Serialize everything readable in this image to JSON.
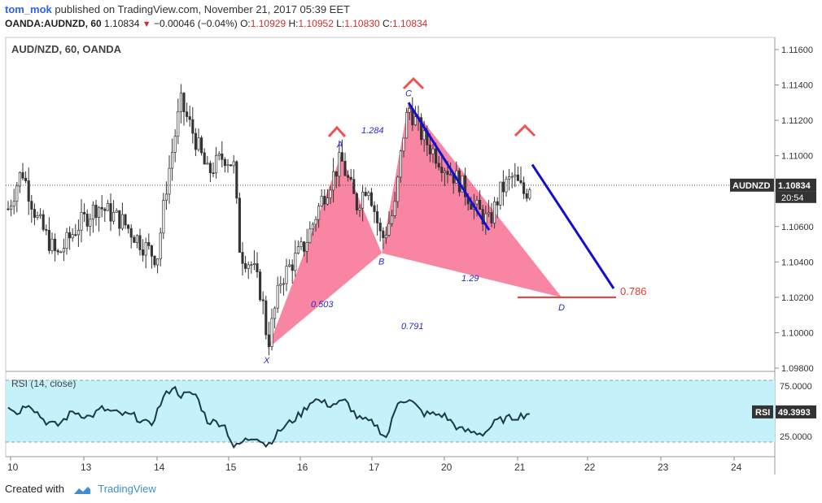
{
  "header": {
    "user": "tom_mok",
    "published_text": "published on TradingView.com, November 21, 2017 05:39 EET",
    "symbol": "OANDA:AUDNZD, 60",
    "last": "1.10834",
    "change": "−0.00046 (−0.04%)",
    "o_label": "O:",
    "o_value": "1.10929",
    "h_label": "H:",
    "h_value": "1.10952",
    "l_label": "L:",
    "l_value": "1.10830",
    "c_label": "C:",
    "c_value": "1.10834"
  },
  "chart_data": {
    "type": "candlestick",
    "title": "AUD/NZD, 60, OANDA",
    "price_ticks": [
      "1.11600",
      "1.11400",
      "1.11200",
      "1.11000",
      "1.10800",
      "1.10600",
      "1.10400",
      "1.10200",
      "1.10000",
      "1.09800"
    ],
    "price_tick_values": [
      1.116,
      1.114,
      1.112,
      1.11,
      1.108,
      1.106,
      1.104,
      1.102,
      1.1,
      1.098
    ],
    "ylim": [
      1.0978,
      1.1172
    ],
    "date_ticks": [
      "10",
      "13",
      "14",
      "15",
      "16",
      "17",
      "20",
      "21",
      "22",
      "23",
      "24"
    ],
    "last_price_badge": {
      "symbol": "AUDNZD",
      "price": "1.10834",
      "countdown": "20:54",
      "value": 1.10834
    },
    "harmonic_pattern": {
      "points": [
        {
          "label": "X",
          "price": 1.0991
        },
        {
          "label": "A",
          "price": 1.11
        },
        {
          "label": "B",
          "price": 1.1045
        },
        {
          "label": "C",
          "price": 1.113
        },
        {
          "label": "D",
          "price": 1.102
        }
      ],
      "ratios": [
        "0.503",
        "1.284",
        "1.29",
        "0.791"
      ],
      "target_level": {
        "label": "0.786",
        "price": 1.102
      }
    },
    "rsi": {
      "label": "RSI (14, close)",
      "badge_name": "RSI",
      "value": "49.3993",
      "levels": [
        "75.0000",
        "25.0000"
      ],
      "level_values": [
        75,
        25
      ],
      "ylim": [
        0,
        100
      ]
    },
    "colors": {
      "pattern_fill": "#f77b9a",
      "projection_line": "#1010d0",
      "target_line": "#e53935",
      "peak_marker": "#ef5350",
      "rsi_band": "#c5f1fb",
      "rsi_line": "#1a3a48",
      "candle": "#333333"
    }
  },
  "footer": {
    "created_with": "Created with",
    "brand": "TradingView"
  }
}
